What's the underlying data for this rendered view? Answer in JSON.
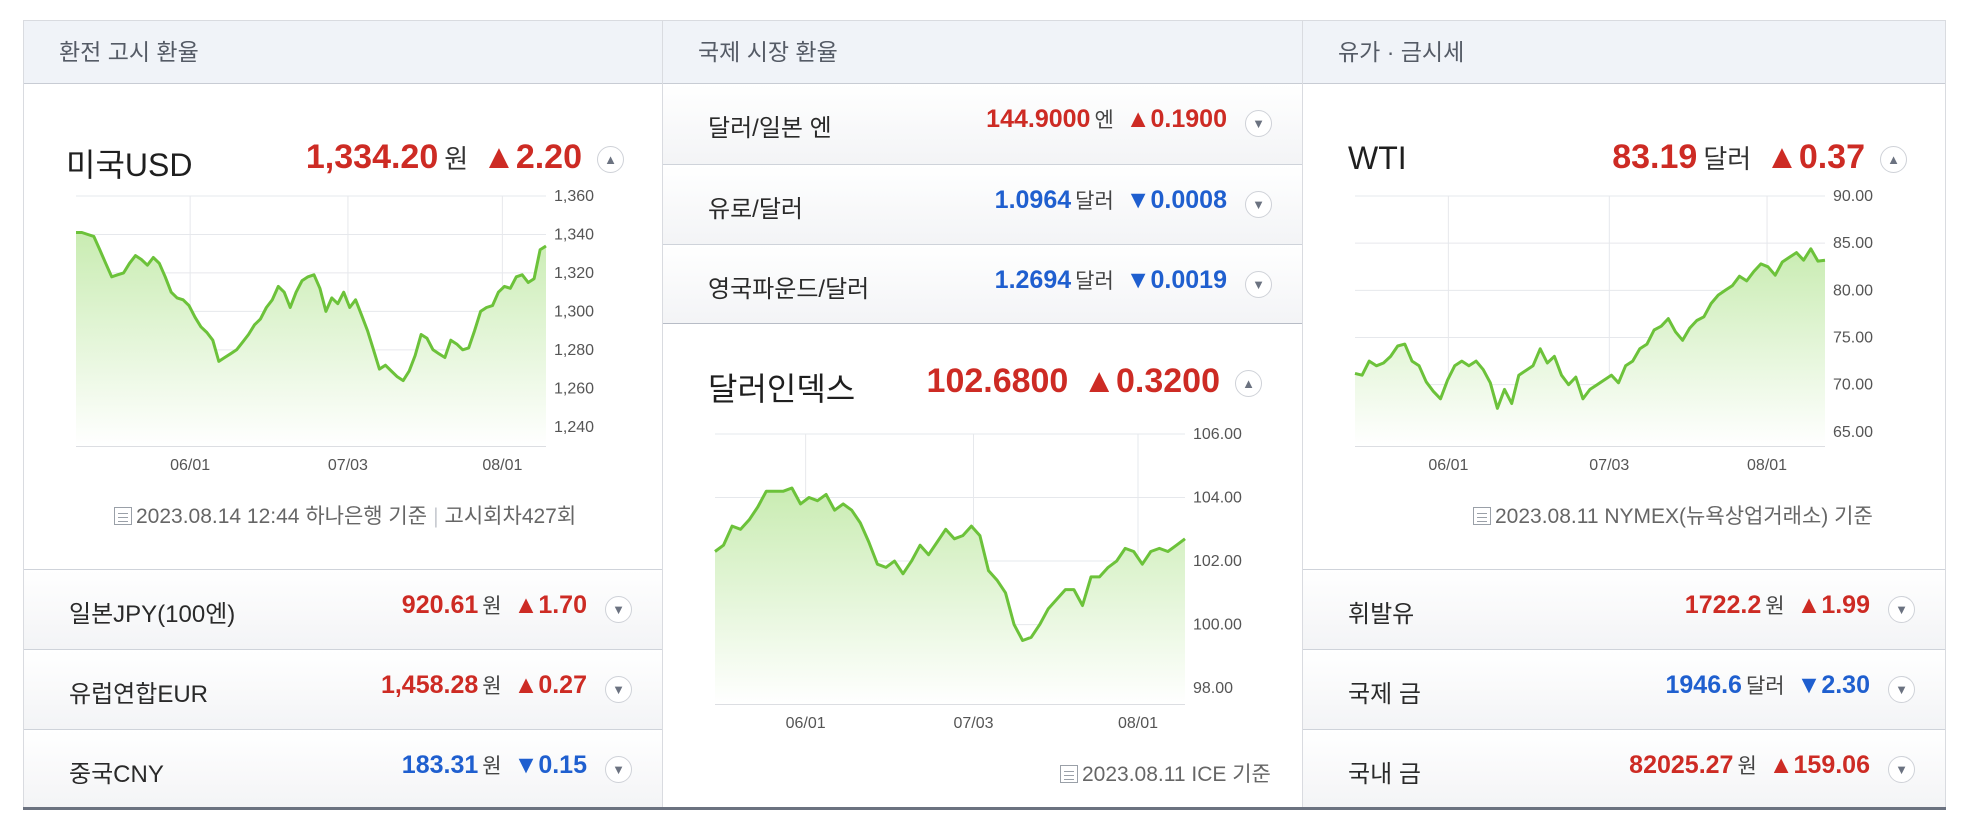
{
  "sections": [
    {
      "title": "환전 고시 환율"
    },
    {
      "title": "국제 시장 환율"
    },
    {
      "title": "유가 · 금시세"
    }
  ],
  "exchange": {
    "main": {
      "name": "미국USD",
      "value": "1,334.20",
      "unit": "원",
      "change": "▲2.20",
      "source": "2023.08.14 12:44 하나은행 기준",
      "round": "고시회차427회"
    },
    "rows": [
      {
        "name": "일본JPY(100엔)",
        "value": "920.61",
        "unit": "원",
        "change": "▲1.70",
        "dir": "up"
      },
      {
        "name": "유럽연합EUR",
        "value": "1,458.28",
        "unit": "원",
        "change": "▲0.27",
        "dir": "up"
      },
      {
        "name": "중국CNY",
        "value": "183.31",
        "unit": "원",
        "change": "▼0.15",
        "dir": "down"
      }
    ]
  },
  "market": {
    "rows": [
      {
        "name": "달러/일본 엔",
        "value": "144.9000",
        "unit": "엔",
        "change": "▲0.1900",
        "dir": "up"
      },
      {
        "name": "유로/달러",
        "value": "1.0964",
        "unit": "달러",
        "change": "▼0.0008",
        "dir": "down"
      },
      {
        "name": "영국파운드/달러",
        "value": "1.2694",
        "unit": "달러",
        "change": "▼0.0019",
        "dir": "down"
      }
    ],
    "main": {
      "name": "달러인덱스",
      "value": "102.6800",
      "change": "▲0.3200",
      "source": "2023.08.11 ICE 기준"
    }
  },
  "oil": {
    "main": {
      "name": "WTI",
      "value": "83.19",
      "unit": "달러",
      "change": "▲0.37",
      "source": "2023.08.11 NYMEX(뉴욕상업거래소) 기준"
    },
    "rows": [
      {
        "name": "휘발유",
        "value": "1722.2",
        "unit": "원",
        "change": "▲1.99",
        "dir": "up"
      },
      {
        "name": "국제 금",
        "value": "1946.6",
        "unit": "달러",
        "change": "▼2.30",
        "dir": "down"
      },
      {
        "name": "국내 금",
        "value": "82025.27",
        "unit": "원",
        "change": "▲159.06",
        "dir": "up"
      }
    ]
  },
  "colors": {
    "up": "#cd2b24",
    "down": "#1f5fcf",
    "line": "#6cc23a",
    "area_top": "#c9ecb2",
    "area_bottom": "#ffffff",
    "grid": "#e6e8ec"
  },
  "chart_data": [
    {
      "type": "area",
      "x_ticks": [
        "06/01",
        "07/03",
        "08/01"
      ],
      "x_tick_pos": [
        17,
        40.5,
        63.5
      ],
      "xlim": [
        0,
        70
      ],
      "ylim": [
        1230,
        1360
      ],
      "y_ticks": [
        "1,360",
        "1,340",
        "1,320",
        "1,300",
        "1,280",
        "1,260",
        "1,240"
      ],
      "y_tick_values": [
        1360,
        1340,
        1320,
        1300,
        1280,
        1260,
        1240
      ],
      "values": [
        1341,
        1341,
        1340,
        1339,
        1332,
        1325,
        1318,
        1319,
        1320,
        1325,
        1329,
        1327,
        1324,
        1328,
        1325,
        1318,
        1310,
        1307,
        1306,
        1303,
        1297,
        1292,
        1289,
        1285,
        1274,
        1276,
        1278,
        1280,
        1284,
        1288,
        1293,
        1296,
        1302,
        1306,
        1313,
        1310,
        1302,
        1310,
        1316,
        1318,
        1319,
        1312,
        1300,
        1307,
        1304,
        1310,
        1302,
        1306,
        1298,
        1290,
        1280,
        1270,
        1272,
        1269,
        1266,
        1264,
        1269,
        1277,
        1288,
        1286,
        1280,
        1278,
        1276,
        1285,
        1283,
        1280,
        1281,
        1290,
        1300,
        1302,
        1303,
        1310,
        1313,
        1312,
        1318,
        1319,
        1315,
        1317,
        1332,
        1334
      ]
    },
    {
      "type": "area",
      "x_ticks": [
        "06/01",
        "07/03",
        "08/01"
      ],
      "x_tick_pos": [
        13.5,
        38.5,
        63
      ],
      "xlim": [
        0,
        70
      ],
      "ylim": [
        97.5,
        106
      ],
      "y_ticks": [
        "106.00",
        "104.00",
        "102.00",
        "100.00",
        "98.00"
      ],
      "y_tick_values": [
        106,
        104,
        102,
        100,
        98
      ],
      "values": [
        102.3,
        102.5,
        103.1,
        103.0,
        103.3,
        103.7,
        104.2,
        104.2,
        104.2,
        104.3,
        103.8,
        104.0,
        103.9,
        104.1,
        103.6,
        103.8,
        103.6,
        103.2,
        102.6,
        101.9,
        101.8,
        102.0,
        101.6,
        102.0,
        102.5,
        102.2,
        102.6,
        103.0,
        102.7,
        102.8,
        103.1,
        102.8,
        101.7,
        101.4,
        101.0,
        100.0,
        99.5,
        99.6,
        100.0,
        100.5,
        100.8,
        101.1,
        101.1,
        100.6,
        101.5,
        101.5,
        101.8,
        102.0,
        102.4,
        102.3,
        101.9,
        102.3,
        102.4,
        102.3,
        102.5,
        102.7
      ]
    },
    {
      "type": "area",
      "x_ticks": [
        "06/01",
        "07/03",
        "08/01"
      ],
      "x_tick_pos": [
        14.5,
        39.5,
        64
      ],
      "xlim": [
        0,
        73
      ],
      "ylim": [
        63.5,
        90
      ],
      "y_ticks": [
        "90.00",
        "85.00",
        "80.00",
        "75.00",
        "70.00",
        "65.00"
      ],
      "y_tick_values": [
        90,
        85,
        80,
        75,
        70,
        65
      ],
      "values": [
        71.2,
        71.0,
        72.5,
        72.0,
        72.3,
        73.0,
        74.1,
        74.3,
        72.5,
        72.0,
        70.3,
        69.3,
        68.5,
        70.5,
        72.0,
        72.5,
        72.0,
        72.5,
        71.6,
        70.2,
        67.5,
        69.5,
        68.0,
        71.0,
        71.5,
        72.0,
        73.8,
        72.3,
        73.0,
        71.0,
        70.0,
        70.8,
        68.5,
        69.5,
        70.0,
        70.5,
        71.0,
        70.2,
        72.0,
        72.5,
        73.8,
        74.3,
        75.8,
        76.2,
        77.0,
        75.6,
        74.7,
        76.0,
        76.8,
        77.2,
        78.6,
        79.5,
        80.0,
        80.5,
        81.5,
        81.0,
        82.0,
        82.8,
        82.5,
        81.6,
        83.0,
        83.5,
        84.0,
        83.2,
        84.4,
        83.1,
        83.2
      ]
    }
  ]
}
